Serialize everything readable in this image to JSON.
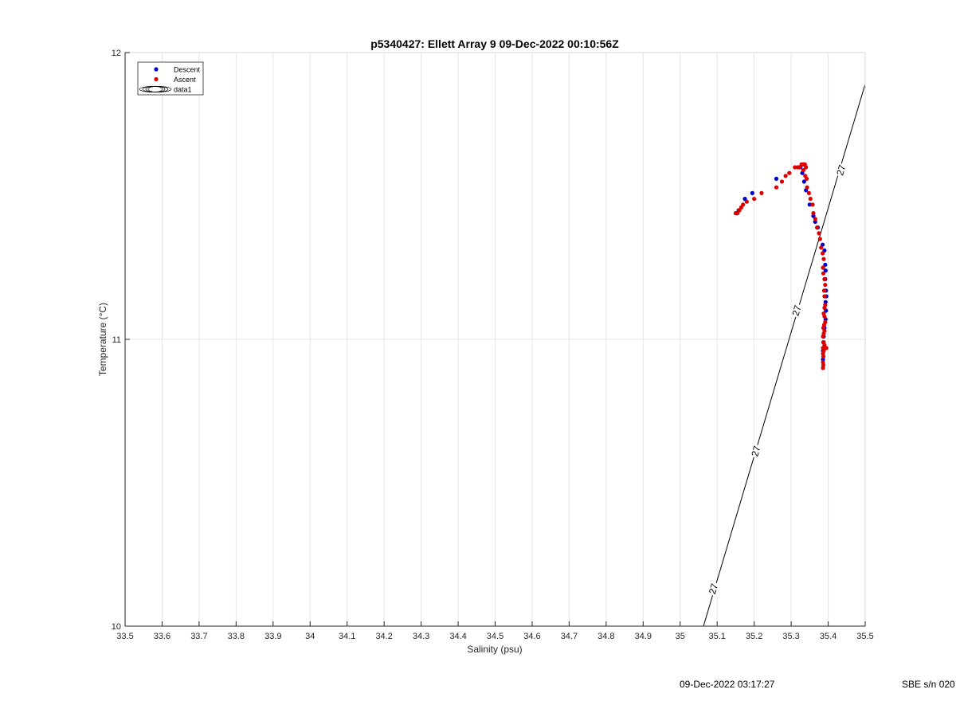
{
  "footer": {
    "timestamp": "09-Dec-2022 03:17:27",
    "serial": "SBE s/n 020"
  },
  "chart_data": {
    "type": "scatter",
    "title": "p5340427: Ellett Array 9 09-Dec-2022 00:10:56Z",
    "xlabel": "Salinity (psu)",
    "ylabel": "Temperature (°C)",
    "xlim": [
      33.5,
      35.5
    ],
    "ylim": [
      10,
      12
    ],
    "grid": true,
    "x_ticks": [
      "33.5",
      "33.6",
      "33.7",
      "33.8",
      "33.9",
      "34",
      "34.1",
      "34.2",
      "34.3",
      "34.4",
      "34.5",
      "34.6",
      "34.7",
      "34.8",
      "34.9",
      "35",
      "35.1",
      "35.2",
      "35.3",
      "35.4",
      "35.5"
    ],
    "y_ticks": [
      "10",
      "11",
      "12"
    ],
    "legend_position": "top-left",
    "legend": [
      {
        "label": "Descent",
        "color": "#0000cc",
        "kind": "dot"
      },
      {
        "label": "Ascent",
        "color": "#dd0000",
        "kind": "dot"
      },
      {
        "label": "data1",
        "color": "#000000",
        "kind": "contour"
      }
    ],
    "contour": {
      "label": "27",
      "line": [
        [
          35.063,
          10.0
        ],
        [
          35.5,
          11.89
        ]
      ],
      "label_positions": [
        [
          35.09,
          10.13
        ],
        [
          35.205,
          10.61
        ],
        [
          35.315,
          11.1
        ],
        [
          35.435,
          11.59
        ]
      ]
    },
    "series": [
      {
        "name": "Descent",
        "color": "#0000cc",
        "points": [
          [
            35.152,
            11.44
          ],
          [
            35.158,
            11.45
          ],
          [
            35.175,
            11.49
          ],
          [
            35.195,
            11.51
          ],
          [
            35.26,
            11.56
          ],
          [
            35.325,
            11.6
          ],
          [
            35.33,
            11.58
          ],
          [
            35.335,
            11.55
          ],
          [
            35.34,
            11.52
          ],
          [
            35.35,
            11.47
          ],
          [
            35.36,
            11.43
          ],
          [
            35.365,
            11.41
          ],
          [
            35.372,
            11.39
          ],
          [
            35.385,
            11.33
          ],
          [
            35.39,
            11.31
          ],
          [
            35.392,
            11.26
          ],
          [
            35.393,
            11.24
          ],
          [
            35.392,
            11.21
          ],
          [
            35.394,
            11.17
          ],
          [
            35.395,
            11.15
          ],
          [
            35.393,
            11.13
          ],
          [
            35.394,
            11.1
          ],
          [
            35.393,
            11.07
          ],
          [
            35.39,
            11.04
          ],
          [
            35.388,
            11.01
          ],
          [
            35.387,
            10.99
          ],
          [
            35.386,
            10.96
          ],
          [
            35.386,
            10.93
          ]
        ]
      },
      {
        "name": "Ascent",
        "color": "#dd0000",
        "points": [
          [
            35.15,
            11.44
          ],
          [
            35.155,
            11.44
          ],
          [
            35.16,
            11.45
          ],
          [
            35.165,
            11.46
          ],
          [
            35.17,
            11.47
          ],
          [
            35.18,
            11.48
          ],
          [
            35.2,
            11.49
          ],
          [
            35.22,
            11.51
          ],
          [
            35.26,
            11.53
          ],
          [
            35.275,
            11.55
          ],
          [
            35.285,
            11.57
          ],
          [
            35.295,
            11.58
          ],
          [
            35.31,
            11.6
          ],
          [
            35.318,
            11.6
          ],
          [
            35.322,
            11.6
          ],
          [
            35.328,
            11.61
          ],
          [
            35.333,
            11.61
          ],
          [
            35.337,
            11.61
          ],
          [
            35.34,
            11.6
          ],
          [
            35.333,
            11.59
          ],
          [
            35.338,
            11.57
          ],
          [
            35.342,
            11.56
          ],
          [
            35.343,
            11.53
          ],
          [
            35.348,
            11.51
          ],
          [
            35.352,
            11.49
          ],
          [
            35.358,
            11.47
          ],
          [
            35.36,
            11.44
          ],
          [
            35.365,
            11.42
          ],
          [
            35.37,
            11.39
          ],
          [
            35.375,
            11.37
          ],
          [
            35.378,
            11.35
          ],
          [
            35.381,
            11.32
          ],
          [
            35.385,
            11.3
          ],
          [
            35.388,
            11.28
          ],
          [
            35.386,
            11.25
          ],
          [
            35.387,
            11.23
          ],
          [
            35.39,
            11.21
          ],
          [
            35.392,
            11.19
          ],
          [
            35.389,
            11.17
          ],
          [
            35.39,
            11.15
          ],
          [
            35.392,
            11.12
          ],
          [
            35.39,
            11.11
          ],
          [
            35.388,
            11.09
          ],
          [
            35.39,
            11.08
          ],
          [
            35.392,
            11.06
          ],
          [
            35.389,
            11.05
          ],
          [
            35.387,
            11.04
          ],
          [
            35.39,
            11.03
          ],
          [
            35.388,
            11.02
          ],
          [
            35.386,
            11.01
          ],
          [
            35.388,
            10.99
          ],
          [
            35.39,
            10.98
          ],
          [
            35.386,
            10.97
          ],
          [
            35.388,
            10.96
          ],
          [
            35.395,
            10.97
          ],
          [
            35.386,
            10.95
          ],
          [
            35.387,
            10.94
          ],
          [
            35.386,
            10.92
          ],
          [
            35.387,
            10.91
          ],
          [
            35.386,
            10.9
          ]
        ]
      }
    ]
  }
}
